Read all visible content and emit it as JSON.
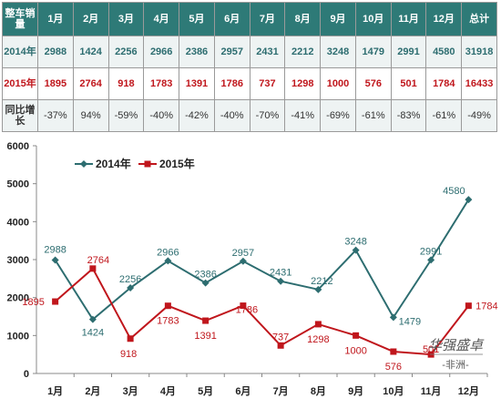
{
  "table": {
    "corner_label": "整车销量",
    "months": [
      "1月",
      "2月",
      "3月",
      "4月",
      "5月",
      "6月",
      "7月",
      "8月",
      "9月",
      "10月",
      "11月",
      "12月"
    ],
    "total_label": "总计",
    "rows": [
      {
        "label": "2014年",
        "values": [
          "2988",
          "1424",
          "2256",
          "2966",
          "2386",
          "2957",
          "2431",
          "2212",
          "3248",
          "1479",
          "2991",
          "4580"
        ],
        "total": "31918"
      },
      {
        "label": "2015年",
        "values": [
          "1895",
          "2764",
          "918",
          "1783",
          "1391",
          "1786",
          "737",
          "1298",
          "1000",
          "576",
          "501",
          "1784"
        ],
        "total": "16433"
      },
      {
        "label": "同比增长",
        "values": [
          "-37%",
          "94%",
          "-59%",
          "-40%",
          "-42%",
          "-40%",
          "-70%",
          "-41%",
          "-69%",
          "-61%",
          "-83%",
          "-61%"
        ],
        "total": "-49%"
      }
    ]
  },
  "chart_data": {
    "type": "line",
    "categories": [
      "1月",
      "2月",
      "3月",
      "4月",
      "5月",
      "6月",
      "7月",
      "8月",
      "9月",
      "10月",
      "11月",
      "12月"
    ],
    "series": [
      {
        "name": "2014年",
        "color": "#2d6d70",
        "marker": "diamond",
        "values": [
          2988,
          1424,
          2256,
          2966,
          2386,
          2957,
          2431,
          2212,
          3248,
          1479,
          2991,
          4580
        ]
      },
      {
        "name": "2015年",
        "color": "#c0161c",
        "marker": "square",
        "values": [
          1895,
          2764,
          918,
          1783,
          1391,
          1786,
          737,
          1298,
          1000,
          576,
          501,
          1784
        ]
      }
    ],
    "ylim": [
      0,
      6000
    ],
    "yticks": [
      0,
      1000,
      2000,
      3000,
      4000,
      5000,
      6000
    ],
    "legend": "top-left",
    "grid": false
  },
  "watermark": {
    "line1": "华强盛卓",
    "line2": "-非洲-"
  },
  "colors": {
    "header_bg": "#2e7a77",
    "series_2014": "#2d6d70",
    "series_2015": "#c0161c"
  }
}
